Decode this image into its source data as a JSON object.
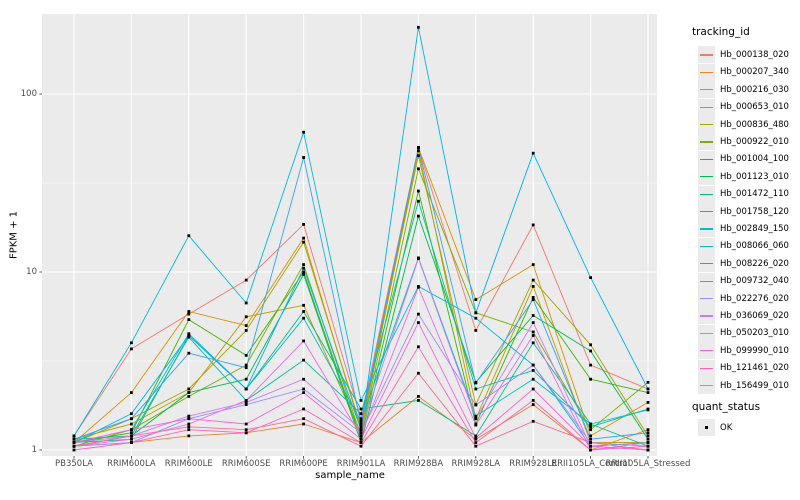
{
  "colors": {
    "panel_bg": "#EBEBEB",
    "grid": "#FFFFFF",
    "tick_text": "#4D4D4D",
    "tick_mark": "#333333",
    "point": "#000000",
    "legend_key_bg": "#EBEBEB"
  },
  "axes": {
    "y_tick_labels": [
      "1",
      "10",
      "100"
    ]
  },
  "legend": {
    "tracking_title": "tracking_id",
    "quant_title": "quant_status",
    "quant_entries": [
      {
        "label": "OK",
        "symbol": "black-square"
      }
    ]
  },
  "chart_data": {
    "type": "line",
    "title": "",
    "xlabel": "sample_name",
    "ylabel": "FPKM + 1",
    "x_type": "categorical",
    "y_scale": "log10",
    "y_ticks": [
      1,
      10,
      100
    ],
    "y_minor_ticks": [
      3.1623,
      31.623
    ],
    "ylim": [
      1,
      280
    ],
    "grid": true,
    "legend_position": "right",
    "point_symbol": "filled-black-square",
    "categories": [
      "PB350LA",
      "RRIM600LA",
      "RRIM600LE",
      "RRIM600SE",
      "RRIM600PE",
      "RRIM901LA",
      "RRIM928BA",
      "RRIM928LA",
      "RRIM928LE",
      "RRII105LA_Control",
      "RRII105LA_Stressed"
    ],
    "series": [
      {
        "name": "Hb_000138_020",
        "color": "#F8766D",
        "values": [
          1.2,
          3.7,
          5.8,
          9.0,
          18.5,
          1.5,
          50,
          4.7,
          18.4,
          3.0,
          2.2
        ]
      },
      {
        "name": "Hb_000207_340",
        "color": "#EA8331",
        "values": [
          1.05,
          1.1,
          1.2,
          1.25,
          1.4,
          1.1,
          2.0,
          1.15,
          1.8,
          1.0,
          1.3
        ]
      },
      {
        "name": "Hb_000216_030",
        "color": "#D89000",
        "values": [
          1.1,
          2.1,
          6.0,
          5.0,
          15.5,
          1.3,
          50,
          7.0,
          11.0,
          1.2,
          1.85
        ]
      },
      {
        "name": "Hb_000653_010",
        "color": "#C09B00",
        "values": [
          1.15,
          1.4,
          2.1,
          5.6,
          6.5,
          1.25,
          48,
          1.5,
          8.3,
          1.1,
          1.1
        ]
      },
      {
        "name": "Hb_000836_480",
        "color": "#A3A500",
        "values": [
          1.1,
          1.5,
          2.2,
          4.7,
          14.7,
          1.35,
          45,
          1.8,
          9.0,
          3.9,
          1.2
        ]
      },
      {
        "name": "Hb_000922_010",
        "color": "#7CAE00",
        "values": [
          1.05,
          1.3,
          2.0,
          3.0,
          11.0,
          1.2,
          38,
          5.9,
          4.6,
          1.3,
          2.4
        ]
      },
      {
        "name": "Hb_001004_100",
        "color": "#39B600",
        "values": [
          1.1,
          1.25,
          5.4,
          3.4,
          10.0,
          1.15,
          28.5,
          1.4,
          7.2,
          2.5,
          2.1
        ]
      },
      {
        "name": "Hb_001123_010",
        "color": "#00BB4E",
        "values": [
          1.05,
          1.2,
          2.1,
          2.5,
          9.7,
          1.1,
          20.6,
          2.4,
          5.7,
          3.6,
          1.15
        ]
      },
      {
        "name": "Hb_001472_110",
        "color": "#00C087",
        "values": [
          1.1,
          1.15,
          4.4,
          2.2,
          6.0,
          1.7,
          1.9,
          1.2,
          4.0,
          1.4,
          1.05
        ]
      },
      {
        "name": "Hb_001758_120",
        "color": "#00C1A3",
        "values": [
          1.15,
          1.2,
          4.3,
          1.9,
          3.2,
          1.6,
          25,
          2.2,
          2.8,
          1.35,
          1.7
        ]
      },
      {
        "name": "Hb_002849_150",
        "color": "#00BFC4",
        "values": [
          1.1,
          1.3,
          4.5,
          2.2,
          5.5,
          1.45,
          12,
          1.55,
          2.5,
          1.4,
          1.68
        ]
      },
      {
        "name": "Hb_008066_060",
        "color": "#00BAE0",
        "values": [
          1.2,
          4.0,
          16.0,
          6.7,
          61,
          1.9,
          8.3,
          5.5,
          3.0,
          1.05,
          1.1
        ]
      },
      {
        "name": "Hb_008226_020",
        "color": "#00B0F6",
        "values": [
          1.1,
          1.6,
          4.4,
          2.2,
          10.5,
          1.3,
          237,
          5.9,
          46.5,
          9.3,
          2.2
        ]
      },
      {
        "name": "Hb_009732_040",
        "color": "#35A2FF",
        "values": [
          1.15,
          1.5,
          3.5,
          2.9,
          44,
          1.4,
          50,
          2.38,
          7.0,
          1.15,
          1.25
        ]
      },
      {
        "name": "Hb_022276_020",
        "color": "#9590FF",
        "values": [
          1.05,
          1.1,
          1.5,
          1.8,
          2.2,
          1.25,
          5.8,
          1.79,
          3.0,
          1.1,
          1.05
        ]
      },
      {
        "name": "Hb_036069_020",
        "color": "#C77CFF",
        "values": [
          1.1,
          1.2,
          1.55,
          1.85,
          2.5,
          1.3,
          11.9,
          1.5,
          5.2,
          1.05,
          1.0
        ]
      },
      {
        "name": "Hb_050203_010",
        "color": "#E76BF3",
        "values": [
          1.05,
          1.15,
          1.4,
          1.9,
          4.1,
          1.2,
          8.2,
          1.38,
          4.4,
          1.0,
          1.1
        ]
      },
      {
        "name": "Hb_099990_010",
        "color": "#FA62DB",
        "values": [
          1.1,
          1.3,
          1.5,
          1.4,
          2.1,
          1.15,
          5.2,
          1.17,
          2.2,
          1.05,
          1.0
        ]
      },
      {
        "name": "Hb_121461_020",
        "color": "#FF62BC",
        "values": [
          1.0,
          1.1,
          1.3,
          1.25,
          1.7,
          1.1,
          3.8,
          1.1,
          1.9,
          1.0,
          1.05
        ]
      },
      {
        "name": "Hb_156499_010",
        "color": "#FF6A98",
        "values": [
          1.05,
          1.2,
          1.35,
          1.3,
          1.5,
          1.05,
          2.7,
          1.05,
          1.45,
          1.1,
          1.0
        ]
      }
    ]
  }
}
